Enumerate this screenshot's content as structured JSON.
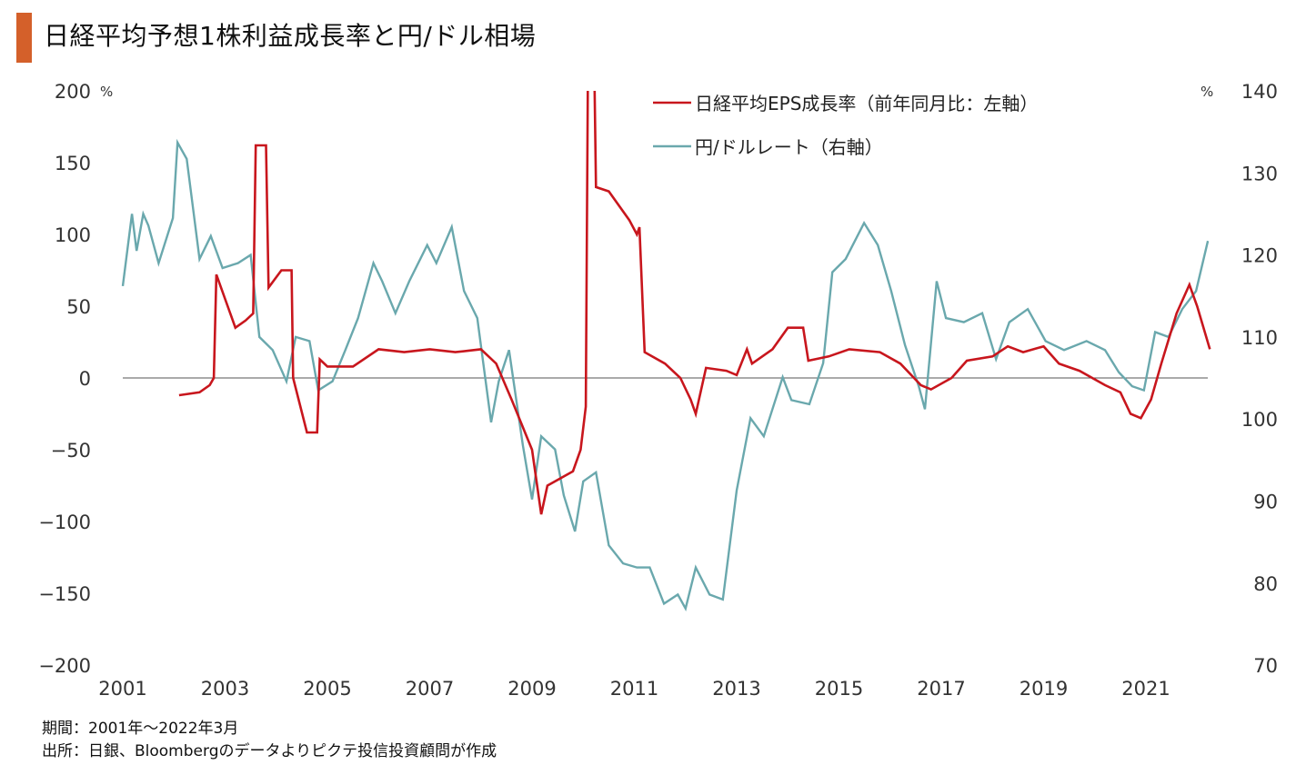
{
  "title": "日経平均予想1株利益成長率と円/ドル相場",
  "footnotes": [
    "期間：2001年～2022年3月",
    "出所：日銀、Bloombergのデータよりピクテ投信投資顧問が作成"
  ],
  "colors": {
    "eps": "#c8161d",
    "fx": "#6aa8ad",
    "negative_tick": "#d83a3a",
    "accent": "#d4602a"
  },
  "chart_data": {
    "type": "line",
    "title": "日経平均予想1株利益成長率と円/ドル相場",
    "left_axis": {
      "unit": "%",
      "range": [
        -200,
        200
      ],
      "ticks": [
        200,
        150,
        100,
        50,
        0,
        -50,
        -100,
        -150,
        -200
      ]
    },
    "right_axis": {
      "unit": "%",
      "range": [
        70,
        140
      ],
      "ticks": [
        140,
        130,
        120,
        110,
        100,
        90,
        80,
        70
      ]
    },
    "x_axis": {
      "range": [
        2001,
        2022.3
      ],
      "ticks": [
        2001,
        2003,
        2005,
        2007,
        2009,
        2011,
        2013,
        2015,
        2017,
        2019,
        2021
      ]
    },
    "legend_position": "top-right",
    "series": [
      {
        "name": "日経平均EPS成長率（前年同月比：左軸）",
        "axis": "left",
        "x": [
          2002.1,
          2002.5,
          2002.7,
          2002.78,
          2002.83,
          2003.2,
          2003.4,
          2003.55,
          2003.6,
          2003.8,
          2003.85,
          2004.1,
          2004.3,
          2004.33,
          2004.6,
          2004.8,
          2004.85,
          2005.0,
          2005.5,
          2006.0,
          2006.5,
          2007.0,
          2007.5,
          2008.0,
          2008.3,
          2008.6,
          2009.0,
          2009.18,
          2009.3,
          2009.8,
          2009.95,
          2010.05,
          2010.1,
          2010.2,
          2010.25,
          2010.5,
          2010.9,
          2011.05,
          2011.1,
          2011.2,
          2011.6,
          2011.9,
          2012.1,
          2012.2,
          2012.4,
          2012.8,
          2013.0,
          2013.2,
          2013.3,
          2013.7,
          2014.0,
          2014.3,
          2014.4,
          2014.8,
          2015.2,
          2015.8,
          2016.2,
          2016.6,
          2016.8,
          2017.2,
          2017.5,
          2018.0,
          2018.3,
          2018.6,
          2019.0,
          2019.3,
          2019.7,
          2020.2,
          2020.5,
          2020.7,
          2020.9,
          2021.1,
          2021.3,
          2021.6,
          2021.85,
          2022.0,
          2022.25
        ],
        "values": [
          -12,
          -10,
          -5,
          0,
          72,
          35,
          40,
          45,
          162,
          162,
          63,
          75,
          75,
          0,
          -38,
          -38,
          13,
          8,
          8,
          20,
          18,
          20,
          18,
          20,
          10,
          -15,
          -50,
          -95,
          -75,
          -65,
          -50,
          -20,
          260,
          260,
          133,
          130,
          110,
          100,
          105,
          18,
          10,
          0,
          -15,
          -25,
          7,
          5,
          2,
          20,
          10,
          20,
          35,
          35,
          12,
          15,
          20,
          18,
          10,
          -5,
          -8,
          0,
          12,
          15,
          22,
          18,
          22,
          10,
          5,
          -5,
          -10,
          -25,
          -28,
          -15,
          10,
          45,
          65,
          50,
          20
        ]
      },
      {
        "name": "円/ドルレート（右軸）",
        "axis": "right",
        "x": [
          2001.0,
          2001.18,
          2001.27,
          2001.4,
          2001.5,
          2001.7,
          2001.98,
          2002.07,
          2002.25,
          2002.5,
          2002.72,
          2002.95,
          2003.25,
          2003.5,
          2003.67,
          2003.93,
          2004.2,
          2004.38,
          2004.65,
          2004.82,
          2005.1,
          2005.35,
          2005.6,
          2005.9,
          2006.07,
          2006.33,
          2006.6,
          2006.95,
          2007.13,
          2007.43,
          2007.67,
          2007.93,
          2008.2,
          2008.35,
          2008.55,
          2008.82,
          2009.0,
          2009.18,
          2009.45,
          2009.62,
          2009.84,
          2010.0,
          2010.25,
          2010.5,
          2010.78,
          2011.05,
          2011.3,
          2011.58,
          2011.85,
          2012.0,
          2012.2,
          2012.47,
          2012.73,
          2013.0,
          2013.27,
          2013.53,
          2013.9,
          2014.07,
          2014.42,
          2014.69,
          2014.87,
          2015.13,
          2015.49,
          2015.76,
          2016.02,
          2016.29,
          2016.56,
          2016.68,
          2016.91,
          2017.09,
          2017.44,
          2017.8,
          2018.07,
          2018.33,
          2018.69,
          2019.04,
          2019.4,
          2019.84,
          2020.2,
          2020.47,
          2020.73,
          2020.96,
          2021.18,
          2021.44,
          2021.71,
          2021.98,
          2022.21
        ],
        "values": [
          116.2,
          125,
          120.5,
          125,
          123.6,
          119,
          124.5,
          133.7,
          131.7,
          119.5,
          122.3,
          118.4,
          119,
          120,
          110,
          108.4,
          104.6,
          110,
          109.5,
          103.5,
          104.6,
          108.4,
          112.3,
          119,
          116.8,
          112.9,
          116.8,
          121.2,
          119,
          123.4,
          115.6,
          112.3,
          99.6,
          104.6,
          108.4,
          96.8,
          90.2,
          97.9,
          96.3,
          90.7,
          86.3,
          92.4,
          93.5,
          84.6,
          82.4,
          81.9,
          81.9,
          77.5,
          78.6,
          76.9,
          81.9,
          78.6,
          78,
          91.3,
          100.1,
          97.9,
          105.1,
          102.3,
          101.8,
          106.8,
          117.9,
          119.5,
          123.9,
          121.2,
          115.6,
          109,
          104,
          101.2,
          116.8,
          112.3,
          111.8,
          112.9,
          107.3,
          111.8,
          113.4,
          109.5,
          108.4,
          109.5,
          108.4,
          105.7,
          104,
          103.5,
          110.6,
          110,
          113.4,
          115.6,
          121.7
        ]
      }
    ]
  }
}
